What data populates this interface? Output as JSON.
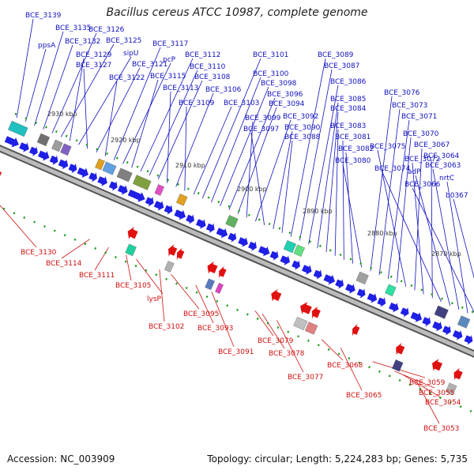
{
  "title": "Bacillus cereus ATCC 10987, complete genome",
  "accession_text": "Accession: NC_003909",
  "topology_text": "Topology: circular; Length: 5,224,283 bp; Genes: 5,735",
  "colors": {
    "forward_gene": "#1f1fe6",
    "reverse_gene": "#e01010",
    "forward_label": "#1010c0",
    "reverse_label": "#d01010",
    "backbone": "#888888",
    "tick": "#1a9a1a"
  },
  "tick_labels": [
    "2930 kbp",
    "2920 kbp",
    "2910 kbp",
    "2900 kbp",
    "2890 kbp",
    "2880 kbp",
    "2870 kbp"
  ],
  "forward_labels": [
    "BCE_3139",
    "ppsA",
    "BCE_3135",
    "BCE_3132",
    "BCE_3126",
    "BCE_3125",
    "BCE_3129",
    "sipU",
    "BCE_3127",
    "BCE_3121",
    "BCE_3122",
    "BCE_3117",
    "pcP",
    "BCE_3115",
    "BCE_3112",
    "BCE_3110",
    "BCE_3108",
    "BCE_3113",
    "BCE_3106",
    "BCE_3109",
    "BCE_3103",
    "BCE_3101",
    "BCE_3100",
    "BCE_3098",
    "BCE_3096",
    "BCE_3094",
    "BCE_3099",
    "BCE_3092",
    "BCE_3097",
    "BCE_3090",
    "BCE_3088",
    "BCE_3089",
    "BCE_3087",
    "BCE_3086",
    "BCE_3085",
    "BCE_3084",
    "BCE_3083",
    "BCE_3081",
    "BCE_3082",
    "BCE_3080",
    "BCE_3076",
    "BCE_3073",
    "BCE_3071",
    "BCE_3070",
    "BCE_3075",
    "BCE_3067",
    "BCE_3072",
    "BCE_3064",
    "BCE_3074",
    "adP",
    "BCE_3063",
    "nrtC",
    "BCE_3066",
    "b0367"
  ],
  "reverse_labels": [
    "BCE_3130",
    "BCE_3114",
    "BCE_3111",
    "BCE_3105",
    "lysP",
    "BCE_3102",
    "BCE_3095",
    "BCE_3093",
    "BCE_3091",
    "BCE_3079",
    "BCE_3078",
    "BCE_3077",
    "BCE_3068",
    "BCE_3065",
    "BCE_3059",
    "BCE_3055",
    "BCE_3054",
    "BCE_3053"
  ]
}
